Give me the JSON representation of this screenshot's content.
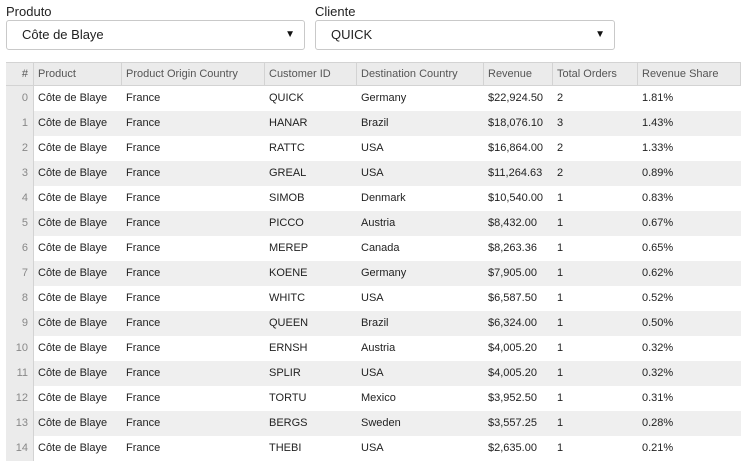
{
  "filters": {
    "produto": {
      "label": "Produto",
      "value": "Côte de Blaye"
    },
    "cliente": {
      "label": "Cliente",
      "value": "QUICK"
    },
    "caret": "▼"
  },
  "table": {
    "columns": [
      "#",
      "Product",
      "Product Origin Country",
      "Customer ID",
      "Destination Country",
      "Revenue",
      "Total Orders",
      "Revenue Share"
    ],
    "rows": [
      [
        "0",
        "Côte de Blaye",
        "France",
        "QUICK",
        "Germany",
        "$22,924.50",
        "2",
        "1.81%"
      ],
      [
        "1",
        "Côte de Blaye",
        "France",
        "HANAR",
        "Brazil",
        "$18,076.10",
        "3",
        "1.43%"
      ],
      [
        "2",
        "Côte de Blaye",
        "France",
        "RATTC",
        "USA",
        "$16,864.00",
        "2",
        "1.33%"
      ],
      [
        "3",
        "Côte de Blaye",
        "France",
        "GREAL",
        "USA",
        "$11,264.63",
        "2",
        "0.89%"
      ],
      [
        "4",
        "Côte de Blaye",
        "France",
        "SIMOB",
        "Denmark",
        "$10,540.00",
        "1",
        "0.83%"
      ],
      [
        "5",
        "Côte de Blaye",
        "France",
        "PICCO",
        "Austria",
        "$8,432.00",
        "1",
        "0.67%"
      ],
      [
        "6",
        "Côte de Blaye",
        "France",
        "MEREP",
        "Canada",
        "$8,263.36",
        "1",
        "0.65%"
      ],
      [
        "7",
        "Côte de Blaye",
        "France",
        "KOENE",
        "Germany",
        "$7,905.00",
        "1",
        "0.62%"
      ],
      [
        "8",
        "Côte de Blaye",
        "France",
        "WHITC",
        "USA",
        "$6,587.50",
        "1",
        "0.52%"
      ],
      [
        "9",
        "Côte de Blaye",
        "France",
        "QUEEN",
        "Brazil",
        "$6,324.00",
        "1",
        "0.50%"
      ],
      [
        "10",
        "Côte de Blaye",
        "France",
        "ERNSH",
        "Austria",
        "$4,005.20",
        "1",
        "0.32%"
      ],
      [
        "11",
        "Côte de Blaye",
        "France",
        "SPLIR",
        "USA",
        "$4,005.20",
        "1",
        "0.32%"
      ],
      [
        "12",
        "Côte de Blaye",
        "France",
        "TORTU",
        "Mexico",
        "$3,952.50",
        "1",
        "0.31%"
      ],
      [
        "13",
        "Côte de Blaye",
        "France",
        "BERGS",
        "Sweden",
        "$3,557.25",
        "1",
        "0.28%"
      ],
      [
        "14",
        "Côte de Blaye",
        "France",
        "THEBI",
        "USA",
        "$2,635.00",
        "1",
        "0.21%"
      ]
    ]
  }
}
